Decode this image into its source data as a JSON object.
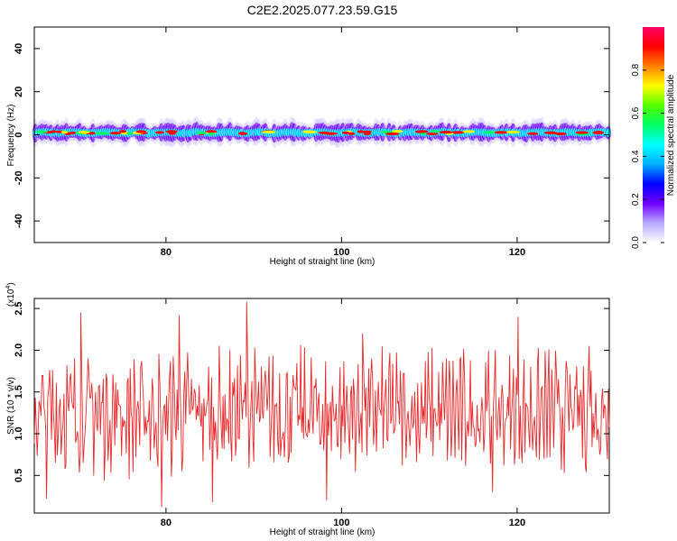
{
  "title": "C2E2.2025.077.23.59.G15",
  "chart_data": [
    {
      "type": "heatmap",
      "xlabel": "Height of straight line (km)",
      "ylabel": "Frequency (Hz)",
      "xlim": [
        65,
        130.5
      ],
      "ylim": [
        -50,
        50
      ],
      "x_ticks": [
        "80",
        "100",
        "120"
      ],
      "x_tick_values": [
        80,
        100,
        120
      ],
      "y_ticks": [
        "40",
        "20",
        "0",
        "-20",
        "-40"
      ],
      "y_tick_values": [
        40,
        20,
        0,
        -20,
        -40
      ],
      "colorbar": {
        "label": "Normalized spectral amplitude",
        "range": [
          0,
          1
        ],
        "ticks": [
          "0.0",
          "0.2",
          "0.4",
          "0.6",
          "0.8"
        ],
        "tick_values": [
          0.0,
          0.2,
          0.4,
          0.6,
          0.8
        ],
        "colormap": [
          "#ffffff",
          "#b9a8ff",
          "#7000ff",
          "#0000ff",
          "#00b0ff",
          "#00ffff",
          "#00ff66",
          "#55ff00",
          "#ffff00",
          "#ff8000",
          "#ff0000",
          "#ff0066"
        ]
      },
      "band": {
        "center_frequency": 1,
        "core_half_width": 1.5,
        "halo_half_width": 5
      },
      "grid": false
    },
    {
      "type": "line",
      "xlabel": "Height of straight line (km)",
      "ylabel": "SNR (10 * v/v)",
      "y_multiplier": "(x10",
      "y_multiplier_exp": "4",
      "y_multiplier_close": ")",
      "xlim": [
        65,
        130.5
      ],
      "ylim": [
        0.05,
        2.62
      ],
      "x_ticks": [
        "80",
        "100",
        "120"
      ],
      "x_tick_values": [
        80,
        100,
        120
      ],
      "y_ticks": [
        "2.5",
        "2.0",
        "1.5",
        "1.0",
        "0.5"
      ],
      "y_tick_values": [
        2.5,
        2.0,
        1.5,
        1.0,
        0.5
      ],
      "series": [
        {
          "color": "#e8282a",
          "mean": 1.25,
          "amplitude": 0.55,
          "samples": 600,
          "peaks": [
            [
              70.3,
              2.45
            ],
            [
              81.5,
              2.42
            ],
            [
              89.2,
              2.58
            ],
            [
              102.4,
              2.2
            ],
            [
              120.1,
              2.4
            ],
            [
              128.2,
              2.05
            ]
          ],
          "troughs": [
            [
              66.4,
              0.22
            ],
            [
              79.5,
              0.12
            ],
            [
              85.3,
              0.18
            ],
            [
              98.3,
              0.2
            ],
            [
              117.2,
              0.3
            ]
          ]
        }
      ],
      "grid": false
    }
  ]
}
